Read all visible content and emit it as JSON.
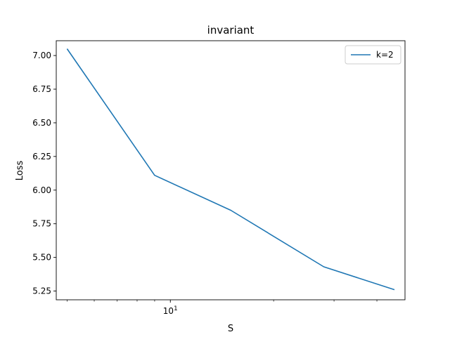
{
  "chart_data": {
    "type": "line",
    "title": "invariant",
    "xlabel": "S",
    "ylabel": "Loss",
    "x_scale": "log",
    "xlim": [
      4.65,
      48.3
    ],
    "ylim": [
      5.185,
      7.11
    ],
    "x_major_ticks": [
      10
    ],
    "x_major_tick_labels": [
      "10^1"
    ],
    "x_minor_ticks": [
      5,
      6,
      7,
      8,
      9,
      20,
      30,
      40
    ],
    "y_ticks": [
      5.25,
      5.5,
      5.75,
      6.0,
      6.25,
      6.5,
      6.75,
      7.0
    ],
    "y_tick_labels": [
      "5.25",
      "5.50",
      "5.75",
      "6.00",
      "6.25",
      "6.50",
      "6.75",
      "7.00"
    ],
    "grid": false,
    "legend_position": "top-right",
    "series": [
      {
        "name": "k=2",
        "color": "#1f77b4",
        "x": [
          5,
          9,
          15,
          28,
          45
        ],
        "y": [
          7.05,
          6.11,
          5.85,
          5.43,
          5.26
        ]
      }
    ]
  }
}
